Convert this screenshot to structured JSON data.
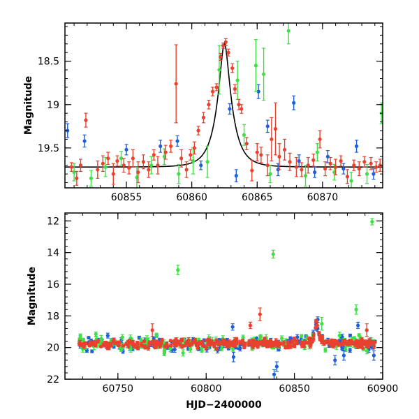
{
  "colors": {
    "red": "#e8412f",
    "green": "#3fdf45",
    "blue": "#1f5fd8",
    "model": "#000000",
    "axes": "#000000"
  },
  "chart_data": [
    {
      "type": "scatter",
      "title": "",
      "xlabel": "",
      "ylabel": "Magnitude",
      "xlim": [
        60850.3,
        60874.6
      ],
      "ylim": [
        19.96,
        18.06
      ],
      "y_inverted": true,
      "xticks": [
        60855,
        60860,
        60865,
        60870
      ],
      "yticks": [
        18.5,
        19,
        19.5
      ],
      "model_curve": {
        "color": "black",
        "t0": 60862.5,
        "peak": 18.3,
        "baseline": 19.72,
        "tE": 1.15,
        "x": [
          60850.3,
          60852,
          60854,
          60856,
          60857,
          60858,
          60859,
          60860,
          60860.5,
          60861,
          60861.5,
          60862,
          60862.3,
          60862.5,
          60862.7,
          60863,
          60863.5,
          60864,
          60864.5,
          60865,
          60866,
          60867,
          60868,
          60870,
          60872,
          60874.6
        ],
        "y": [
          19.72,
          19.71,
          19.7,
          19.68,
          19.65,
          19.61,
          19.55,
          19.42,
          19.31,
          19.15,
          18.92,
          18.62,
          18.42,
          18.3,
          18.42,
          18.62,
          18.92,
          19.15,
          19.31,
          19.42,
          19.55,
          19.61,
          19.65,
          19.68,
          19.7,
          19.71
        ]
      },
      "series": [
        {
          "color": "red",
          "x": [
            60850.8,
            60851.2,
            60851.5,
            60851.9,
            60852.8,
            60853.2,
            60853.6,
            60854.0,
            60854.3,
            60854.8,
            60855.2,
            60855.5,
            60855.9,
            60856.3,
            60856.7,
            60857.1,
            60857.4,
            60858.0,
            60858.4,
            60858.8,
            60859.2,
            60859.6,
            60859.9,
            60860.2,
            60860.5,
            60860.9,
            60861.3,
            60861.6,
            60861.9,
            60862.2,
            60862.4,
            60862.6,
            60862.8,
            60863.1,
            60863.3,
            60863.6,
            60863.8,
            60864.2,
            60864.6,
            60865.0,
            60865.3,
            60865.8,
            60866.1,
            60866.4,
            60866.7,
            60867.1,
            60867.5,
            60868.0,
            60868.4,
            60868.9,
            60869.3,
            60869.8,
            60870.2,
            60870.6,
            60871.0,
            60871.4,
            60871.9,
            60872.4,
            60872.8,
            60873.2,
            60873.7,
            60874.1,
            60874.4
          ],
          "y": [
            19.72,
            19.85,
            19.7,
            19.18,
            19.75,
            19.68,
            19.62,
            19.8,
            19.65,
            19.7,
            19.73,
            19.62,
            19.78,
            19.66,
            19.75,
            19.58,
            19.7,
            19.55,
            19.48,
            18.76,
            19.62,
            19.75,
            19.58,
            19.5,
            19.3,
            19.15,
            19.0,
            18.85,
            18.8,
            18.45,
            18.32,
            18.28,
            18.4,
            18.58,
            18.82,
            19.0,
            19.05,
            19.45,
            19.76,
            19.55,
            19.58,
            19.7,
            19.4,
            19.28,
            19.6,
            19.52,
            19.66,
            19.72,
            19.75,
            19.7,
            19.64,
            19.4,
            19.74,
            19.68,
            19.72,
            19.65,
            19.83,
            19.7,
            19.74,
            19.66,
            19.68,
            19.72,
            19.7
          ],
          "err": [
            0.05,
            0.08,
            0.07,
            0.08,
            0.1,
            0.09,
            0.07,
            0.12,
            0.06,
            0.08,
            0.07,
            0.1,
            0.12,
            0.08,
            0.09,
            0.06,
            0.1,
            0.08,
            0.07,
            0.45,
            0.1,
            0.09,
            0.06,
            0.07,
            0.05,
            0.06,
            0.05,
            0.05,
            0.04,
            0.04,
            0.03,
            0.04,
            0.04,
            0.05,
            0.05,
            0.06,
            0.05,
            0.07,
            0.12,
            0.1,
            0.09,
            0.12,
            0.25,
            0.3,
            0.15,
            0.12,
            0.1,
            0.11,
            0.08,
            0.09,
            0.07,
            0.1,
            0.08,
            0.07,
            0.09,
            0.06,
            0.08,
            0.06,
            0.08,
            0.06,
            0.07,
            0.06,
            0.07
          ]
        },
        {
          "color": "green",
          "x": [
            60851.0,
            60852.3,
            60853.4,
            60854.6,
            60855.8,
            60856.9,
            60857.9,
            60859.0,
            60860.1,
            60861.2,
            60862.1,
            60863.5,
            60864.0,
            60864.9,
            60865.5,
            60866.0,
            60867.4,
            60868.7,
            60869.6,
            60870.9,
            60872.2,
            60873.4,
            60874.5
          ],
          "y": [
            19.78,
            19.85,
            19.72,
            19.62,
            19.84,
            19.7,
            19.6,
            19.8,
            19.65,
            19.66,
            18.6,
            18.72,
            19.35,
            18.55,
            18.65,
            19.8,
            18.15,
            19.82,
            19.55,
            19.78,
            19.88,
            19.8,
            19.1
          ],
          "err": [
            0.1,
            0.09,
            0.11,
            0.08,
            0.12,
            0.1,
            0.09,
            0.11,
            0.15,
            0.18,
            0.28,
            0.22,
            0.12,
            0.3,
            0.3,
            0.1,
            0.15,
            0.12,
            0.1,
            0.09,
            0.1,
            0.11,
            0.12
          ]
        },
        {
          "color": "blue",
          "x": [
            60850.5,
            60851.8,
            60855.0,
            60857.6,
            60858.9,
            60860.7,
            60862.9,
            60863.4,
            60865.1,
            60865.8,
            60866.6,
            60867.8,
            60868.2,
            60869.4,
            60870.4,
            60871.6,
            60872.6,
            60873.9
          ],
          "y": [
            19.3,
            19.42,
            19.52,
            19.48,
            19.42,
            19.7,
            19.05,
            19.82,
            18.85,
            19.25,
            19.75,
            18.98,
            19.65,
            19.78,
            19.6,
            19.74,
            19.48,
            19.8
          ],
          "err": [
            0.08,
            0.07,
            0.06,
            0.07,
            0.06,
            0.05,
            0.06,
            0.07,
            0.08,
            0.07,
            0.07,
            0.08,
            0.07,
            0.06,
            0.07,
            0.06,
            0.07,
            0.06
          ]
        }
      ]
    },
    {
      "type": "scatter",
      "title": "",
      "xlabel": "HJD−2400000",
      "ylabel": "Magnitude",
      "xlim": [
        60720,
        60900
      ],
      "ylim": [
        22.0,
        11.5
      ],
      "y_inverted": true,
      "xticks": [
        60750,
        60800,
        60850,
        60900
      ],
      "yticks": [
        12,
        14,
        16,
        18,
        20,
        22
      ],
      "baseline_mag": 19.75,
      "outliers": [
        {
          "color": "green",
          "x": 60784.0,
          "y": 15.1,
          "err": 0.3
        },
        {
          "color": "green",
          "x": 60838.0,
          "y": 14.1,
          "err": 0.25
        },
        {
          "color": "green",
          "x": 60894.0,
          "y": 12.05,
          "err": 0.2
        },
        {
          "color": "green",
          "x": 60885.0,
          "y": 17.6,
          "err": 0.3
        },
        {
          "color": "green",
          "x": 60865.5,
          "y": 18.5,
          "err": 0.4
        },
        {
          "color": "red",
          "x": 60830.5,
          "y": 17.9,
          "err": 0.4
        },
        {
          "color": "red",
          "x": 60769.5,
          "y": 18.9,
          "err": 0.4
        },
        {
          "color": "red",
          "x": 60825.0,
          "y": 18.6,
          "err": 0.2
        },
        {
          "color": "red",
          "x": 60862.3,
          "y": 18.3,
          "err": 0.05
        },
        {
          "color": "red",
          "x": 60891.0,
          "y": 18.9,
          "err": 0.4
        },
        {
          "color": "blue",
          "x": 60815.0,
          "y": 18.7,
          "err": 0.2
        },
        {
          "color": "blue",
          "x": 60815.5,
          "y": 20.6,
          "err": 0.3
        },
        {
          "color": "blue",
          "x": 60838.5,
          "y": 21.7,
          "err": 0.3
        },
        {
          "color": "blue",
          "x": 60840.0,
          "y": 21.2,
          "err": 0.3
        },
        {
          "color": "blue",
          "x": 60873.0,
          "y": 20.8,
          "err": 0.3
        },
        {
          "color": "blue",
          "x": 60878.0,
          "y": 20.5,
          "err": 0.3
        },
        {
          "color": "blue",
          "x": 60895.0,
          "y": 20.5,
          "err": 0.3
        },
        {
          "color": "blue",
          "x": 60886.0,
          "y": 18.6,
          "err": 0.2
        }
      ]
    }
  ]
}
